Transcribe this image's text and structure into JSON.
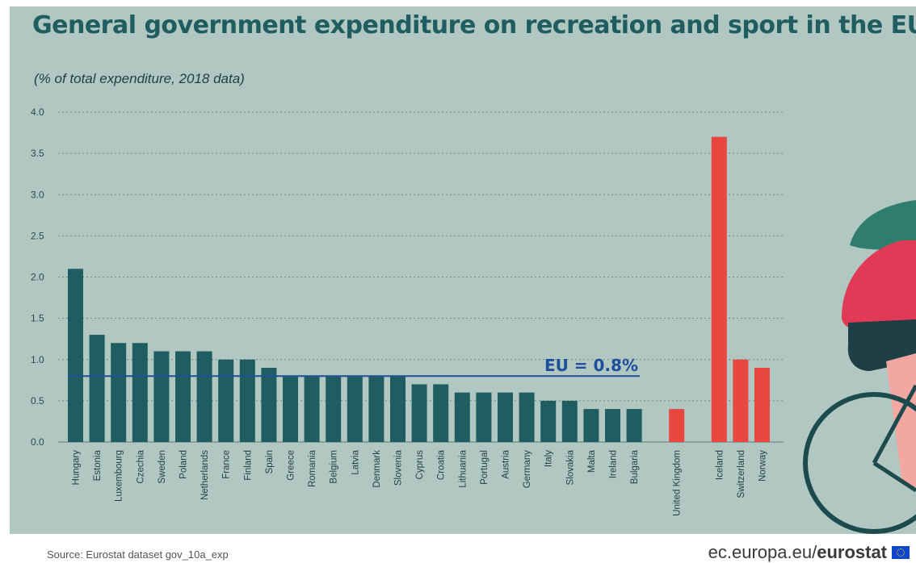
{
  "header": {
    "title": "General government expenditure on recreation and sport in the EU",
    "subtitle": "(% of total expenditure, 2018 data)"
  },
  "footer": {
    "source": "Source: Eurostat dataset gov_10a_exp",
    "brand_prefix": "ec.europa.eu/",
    "brand_bold": "eurostat"
  },
  "colors": {
    "eu_bar": "#1f5d60",
    "non_eu_bar": "#e8463f",
    "reference_line": "#1f4e9a",
    "background": "#b1c7c1"
  },
  "chart_data": {
    "type": "bar",
    "title": "General government expenditure on recreation and sport in the EU",
    "subtitle": "(% of total expenditure, 2018 data)",
    "xlabel": "",
    "ylabel": "",
    "ylim": [
      0,
      4.0
    ],
    "yticks": [
      "0.0",
      "0.5",
      "1.0",
      "1.5",
      "2.0",
      "2.5",
      "3.0",
      "3.5",
      "4.0"
    ],
    "grid": true,
    "groups": [
      {
        "categories": [
          "Hungary",
          "Estonia",
          "Luxembourg",
          "Czechia",
          "Sweden",
          "Poland",
          "Netherlands",
          "France",
          "Finland",
          "Spain",
          "Greece",
          "Romania",
          "Belgium",
          "Latvia",
          "Denmark",
          "Slovenia",
          "Cyprus",
          "Croatia",
          "Lithuania",
          "Portugal",
          "Austria",
          "Germany",
          "Italy",
          "Slovakia",
          "Malta",
          "Ireland",
          "Bulgaria"
        ],
        "values": [
          2.1,
          1.3,
          1.2,
          1.2,
          1.1,
          1.1,
          1.1,
          1.0,
          1.0,
          0.9,
          0.8,
          0.8,
          0.8,
          0.8,
          0.8,
          0.8,
          0.7,
          0.7,
          0.6,
          0.6,
          0.6,
          0.6,
          0.5,
          0.5,
          0.4,
          0.4,
          0.4
        ],
        "color": "#1f5d60"
      },
      {
        "categories": [
          "United Kingdom"
        ],
        "values": [
          0.4
        ],
        "color": "#e8463f"
      },
      {
        "categories": [
          "Iceland",
          "Switzerland",
          "Norway"
        ],
        "values": [
          3.7,
          1.0,
          0.9
        ],
        "color": "#e8463f"
      }
    ],
    "reference_line": {
      "label": "EU = 0.8%",
      "value": 0.8
    }
  }
}
